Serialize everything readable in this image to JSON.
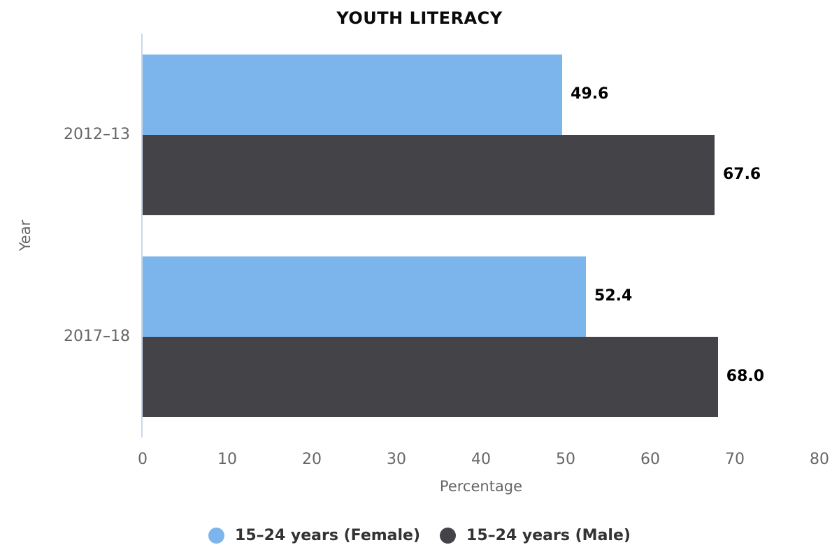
{
  "chart_data": {
    "type": "bar",
    "title": "YOUTH LITERACY",
    "xlabel": "Percentage",
    "ylabel": "Year",
    "categories": [
      "2012–13",
      "2017–18"
    ],
    "series": [
      {
        "id": "female",
        "name": "15–24 years (Female)",
        "color": "#7cb5ec",
        "values": [
          49.6,
          52.4
        ]
      },
      {
        "id": "male",
        "name": "15–24 years (Male)",
        "color": "#434348",
        "values": [
          67.6,
          68.0
        ]
      }
    ],
    "value_label_decimals": 1,
    "xlim": [
      0,
      80
    ],
    "xticks": [
      0,
      10,
      20,
      30,
      40,
      50,
      60,
      70,
      80
    ],
    "grid": false,
    "legend_position": "bottom",
    "axis_line_color": "#ccd6eb",
    "muted_text_color": "#666666",
    "value_label_color": "#000000",
    "legend_text_color": "#333333"
  }
}
